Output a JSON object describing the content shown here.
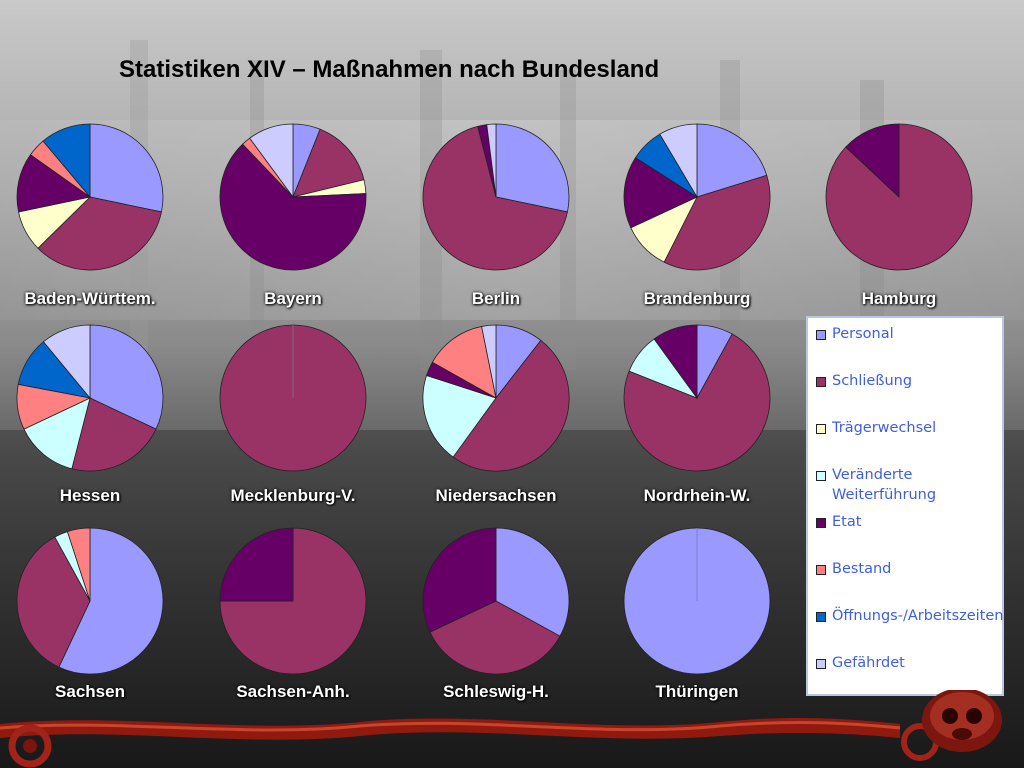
{
  "slide": {
    "title": "Statistiken XIV – Maßnahmen nach Bundesland"
  },
  "legend": {
    "items": [
      {
        "label": "Personal",
        "color": "#9999ff"
      },
      {
        "label": "Schließung",
        "color": "#993366"
      },
      {
        "label": "Trägerwechsel",
        "color": "#ffffcc"
      },
      {
        "label": "Veränderte Weiterführung",
        "color": "#ccffff"
      },
      {
        "label": "Etat",
        "color": "#660066"
      },
      {
        "label": "Bestand",
        "color": "#ff8080"
      },
      {
        "label": "Öffnungs-/Arbeitszeiten",
        "color": "#0066cc"
      },
      {
        "label": "Gefährdet",
        "color": "#ccccff"
      }
    ]
  },
  "chart_data": {
    "type": "pie",
    "categories": [
      "Personal",
      "Schließung",
      "Trägerwechsel",
      "Veränderte Weiterführung",
      "Etat",
      "Bestand",
      "Öffnungs-/Arbeitszeiten",
      "Gefährdet"
    ],
    "charts": [
      {
        "name": "Baden-Württem.",
        "values": [
          28,
          34,
          9,
          0,
          13,
          4,
          11,
          0
        ]
      },
      {
        "name": "Bayern",
        "values": [
          6,
          15,
          3,
          0,
          63,
          2,
          0,
          10
        ]
      },
      {
        "name": "Berlin",
        "values": [
          28,
          67,
          0,
          0,
          2,
          0,
          0,
          2
        ]
      },
      {
        "name": "Brandenburg",
        "values": [
          19,
          35,
          10,
          0,
          15,
          0,
          7,
          8
        ]
      },
      {
        "name": "Hamburg",
        "values": [
          0,
          87,
          0,
          0,
          13,
          0,
          0,
          0
        ]
      },
      {
        "name": "Hessen",
        "values": [
          32,
          22,
          0,
          14,
          0,
          10,
          11,
          11
        ]
      },
      {
        "name": "Mecklenburg-V.",
        "values": [
          0,
          100,
          0,
          0,
          0,
          0,
          0,
          0
        ]
      },
      {
        "name": "Niedersachsen",
        "values": [
          10,
          47,
          0,
          19,
          3,
          13,
          0,
          3
        ]
      },
      {
        "name": "Nordrhein-W.",
        "values": [
          8,
          73,
          0,
          9,
          10,
          0,
          0,
          0
        ]
      },
      {
        "name": "Sachsen",
        "values": [
          57,
          35,
          0,
          3,
          0,
          5,
          0,
          0
        ]
      },
      {
        "name": "Sachsen-Anh.",
        "values": [
          0,
          75,
          0,
          0,
          25,
          0,
          0,
          0
        ]
      },
      {
        "name": "Schleswig-H.",
        "values": [
          33,
          35,
          0,
          0,
          32,
          0,
          0,
          0
        ]
      },
      {
        "name": "Thüringen",
        "values": [
          100,
          0,
          0,
          0,
          0,
          0,
          0,
          0
        ]
      }
    ]
  }
}
